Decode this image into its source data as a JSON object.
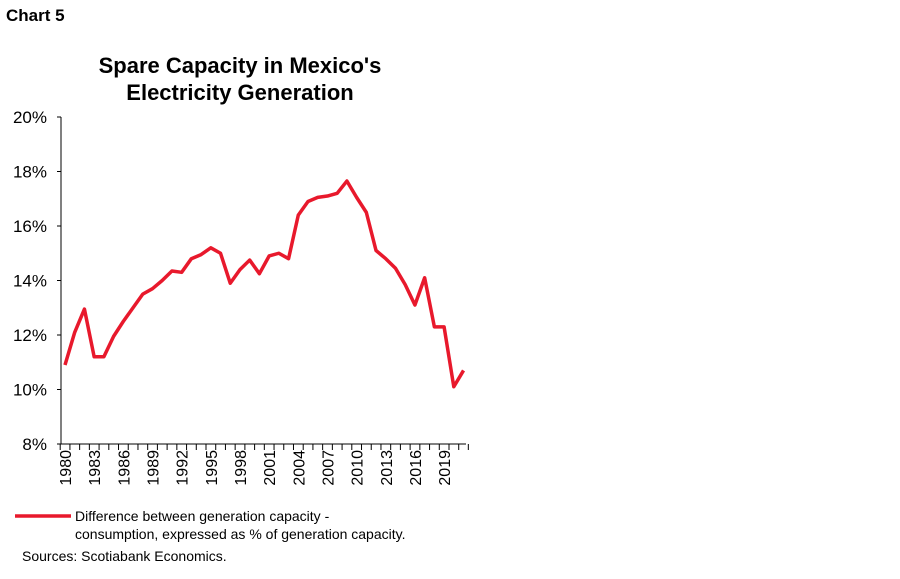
{
  "chart_label": "Chart 5",
  "chart_data": {
    "type": "line",
    "title": "Spare Capacity in Mexico's Electricity Generation",
    "title_lines": [
      "Spare Capacity in Mexico's",
      "Electricity Generation"
    ],
    "xlabel": "",
    "ylabel": "",
    "ylim": [
      8,
      20
    ],
    "yticks": [
      "8%",
      "10%",
      "12%",
      "14%",
      "16%",
      "18%",
      "20%"
    ],
    "xticks": [
      "1980",
      "1983",
      "1986",
      "1989",
      "1992",
      "1995",
      "1998",
      "2001",
      "2004",
      "2007",
      "2010",
      "2013",
      "2016",
      "2019"
    ],
    "x": [
      1980,
      1981,
      1982,
      1983,
      1984,
      1985,
      1986,
      1987,
      1988,
      1989,
      1990,
      1991,
      1992,
      1993,
      1994,
      1995,
      1996,
      1997,
      1998,
      1999,
      2000,
      2001,
      2002,
      2003,
      2004,
      2005,
      2006,
      2007,
      2008,
      2009,
      2010,
      2011,
      2012,
      2013,
      2014,
      2015,
      2016,
      2017,
      2018,
      2019,
      2020,
      2021
    ],
    "series": [
      {
        "name": "Difference between generation capacity - consumption, expressed as % of generation capacity.",
        "color": "#e8192c",
        "values": [
          10.9,
          12.1,
          12.95,
          11.2,
          11.2,
          11.95,
          12.5,
          13.0,
          13.5,
          13.7,
          14.0,
          14.35,
          14.3,
          14.8,
          14.95,
          15.2,
          15.0,
          13.9,
          14.4,
          14.75,
          14.25,
          14.9,
          15.0,
          14.8,
          16.4,
          16.9,
          17.05,
          17.1,
          17.2,
          17.65,
          17.05,
          16.5,
          15.1,
          14.8,
          14.45,
          13.85,
          13.1,
          14.1,
          12.3,
          12.3,
          10.1,
          10.7
        ]
      }
    ],
    "legend_lines": [
      "Difference between generation capacity -",
      "consumption, expressed as % of generation capacity."
    ],
    "legend_position": "bottom",
    "grid": false
  },
  "source": "Sources: Scotiabank Economics."
}
